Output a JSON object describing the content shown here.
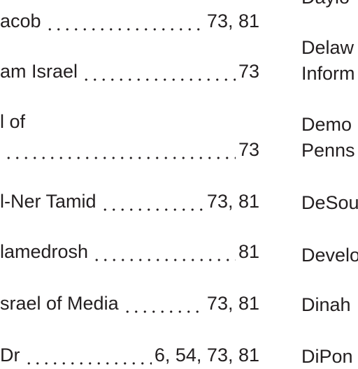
{
  "left_column": [
    {
      "name": "acob",
      "pages": "73, 81"
    },
    {
      "name": "am Israel",
      "pages": "73"
    },
    {
      "name": "l of",
      "pages": "73"
    },
    {
      "name": "l-Ner Tamid",
      "pages": "73, 81"
    },
    {
      "name": "lamedrosh",
      "pages": "81"
    },
    {
      "name": "srael of Media",
      "pages": "73, 81"
    },
    {
      "name": "Dr",
      "pages": "6, 54, 73, 81"
    }
  ],
  "right_column": [
    {
      "lines": [
        "Daylo"
      ]
    },
    {
      "lines": [
        "Delaw",
        "Inform"
      ]
    },
    {
      "lines": [
        "Demo",
        "Penns"
      ]
    },
    {
      "lines": [
        "DeSou"
      ]
    },
    {
      "lines": [
        "Develo"
      ]
    },
    {
      "lines": [
        "Dinah"
      ]
    },
    {
      "lines": [
        "DiPon"
      ]
    }
  ]
}
